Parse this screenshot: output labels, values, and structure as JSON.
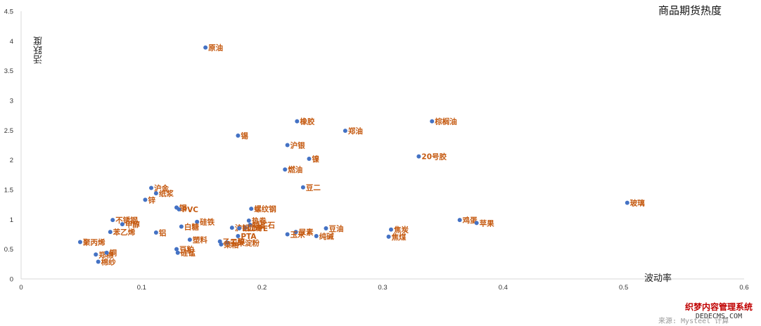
{
  "chart_data": {
    "type": "scatter",
    "title": "商品期货热度",
    "xlabel": "波动率",
    "ylabel": "活跃度",
    "xlim": [
      0,
      0.6
    ],
    "ylim": [
      0,
      4.5
    ],
    "xticks": [
      "0",
      "0.1",
      "0.2",
      "0.3",
      "0.4",
      "0.5",
      "0.6"
    ],
    "yticks": [
      "0",
      "0.5",
      "1",
      "1.5",
      "2",
      "2.5",
      "3",
      "3.5",
      "4",
      "4.5"
    ],
    "grid": false,
    "legend": "none",
    "marker_color": "#4472c4",
    "label_color": "#c55a11",
    "points": [
      {
        "x": 0.153,
        "y": 3.89,
        "label": "原油"
      },
      {
        "x": 0.229,
        "y": 2.65,
        "label": "橡胶"
      },
      {
        "x": 0.341,
        "y": 2.65,
        "label": "棕榈油"
      },
      {
        "x": 0.269,
        "y": 2.49,
        "label": "郑油"
      },
      {
        "x": 0.18,
        "y": 2.41,
        "label": "锡"
      },
      {
        "x": 0.221,
        "y": 2.25,
        "label": "沪银"
      },
      {
        "x": 0.33,
        "y": 2.06,
        "label": "20号胶"
      },
      {
        "x": 0.239,
        "y": 2.02,
        "label": "镍"
      },
      {
        "x": 0.219,
        "y": 1.84,
        "label": "燃油"
      },
      {
        "x": 0.234,
        "y": 1.54,
        "label": "豆二"
      },
      {
        "x": 0.108,
        "y": 1.53,
        "label": "沪金"
      },
      {
        "x": 0.112,
        "y": 1.44,
        "label": "纸浆"
      },
      {
        "x": 0.103,
        "y": 1.33,
        "label": "锌"
      },
      {
        "x": 0.129,
        "y": 1.2,
        "label": "铜"
      },
      {
        "x": 0.131,
        "y": 1.17,
        "label": "PVC"
      },
      {
        "x": 0.191,
        "y": 1.18,
        "label": "螺纹钢"
      },
      {
        "x": 0.503,
        "y": 1.28,
        "label": "玻璃"
      },
      {
        "x": 0.076,
        "y": 0.99,
        "label": "不锈钢"
      },
      {
        "x": 0.084,
        "y": 0.92,
        "label": "甲醇"
      },
      {
        "x": 0.146,
        "y": 0.96,
        "label": "硅铁"
      },
      {
        "x": 0.364,
        "y": 0.99,
        "label": "鸡蛋"
      },
      {
        "x": 0.378,
        "y": 0.94,
        "label": "苹果"
      },
      {
        "x": 0.133,
        "y": 0.88,
        "label": "白糖"
      },
      {
        "x": 0.189,
        "y": 0.98,
        "label": "热卷"
      },
      {
        "x": 0.19,
        "y": 0.91,
        "label": "铁矿石"
      },
      {
        "x": 0.186,
        "y": 0.86,
        "label": "沥青"
      },
      {
        "x": 0.175,
        "y": 0.86,
        "label": "沪铅"
      },
      {
        "x": 0.181,
        "y": 0.85,
        "label": "LLDPE"
      },
      {
        "x": 0.074,
        "y": 0.79,
        "label": "苯乙烯"
      },
      {
        "x": 0.112,
        "y": 0.78,
        "label": "铝"
      },
      {
        "x": 0.228,
        "y": 0.79,
        "label": "尿素"
      },
      {
        "x": 0.253,
        "y": 0.85,
        "label": "豆油"
      },
      {
        "x": 0.307,
        "y": 0.83,
        "label": "焦炭"
      },
      {
        "x": 0.221,
        "y": 0.75,
        "label": "玉米"
      },
      {
        "x": 0.245,
        "y": 0.72,
        "label": "纯碱"
      },
      {
        "x": 0.305,
        "y": 0.71,
        "label": "焦煤"
      },
      {
        "x": 0.18,
        "y": 0.72,
        "label": "PTA"
      },
      {
        "x": 0.14,
        "y": 0.66,
        "label": "塑料"
      },
      {
        "x": 0.165,
        "y": 0.63,
        "label": "乙二醇"
      },
      {
        "x": 0.171,
        "y": 0.61,
        "label": "玉米淀粉"
      },
      {
        "x": 0.166,
        "y": 0.58,
        "label": "菜粕"
      },
      {
        "x": 0.049,
        "y": 0.62,
        "label": "聚丙烯"
      },
      {
        "x": 0.129,
        "y": 0.5,
        "label": "豆粕"
      },
      {
        "x": 0.13,
        "y": 0.44,
        "label": "硅锰"
      },
      {
        "x": 0.062,
        "y": 0.41,
        "label": "郑棉"
      },
      {
        "x": 0.071,
        "y": 0.44,
        "label": "铜"
      },
      {
        "x": 0.064,
        "y": 0.29,
        "label": "棉纱"
      }
    ]
  },
  "source_note": "来源: Mysteel 计算",
  "watermark": {
    "line1": "织梦内容管理系统",
    "line2": "DEDECMS.COM"
  }
}
